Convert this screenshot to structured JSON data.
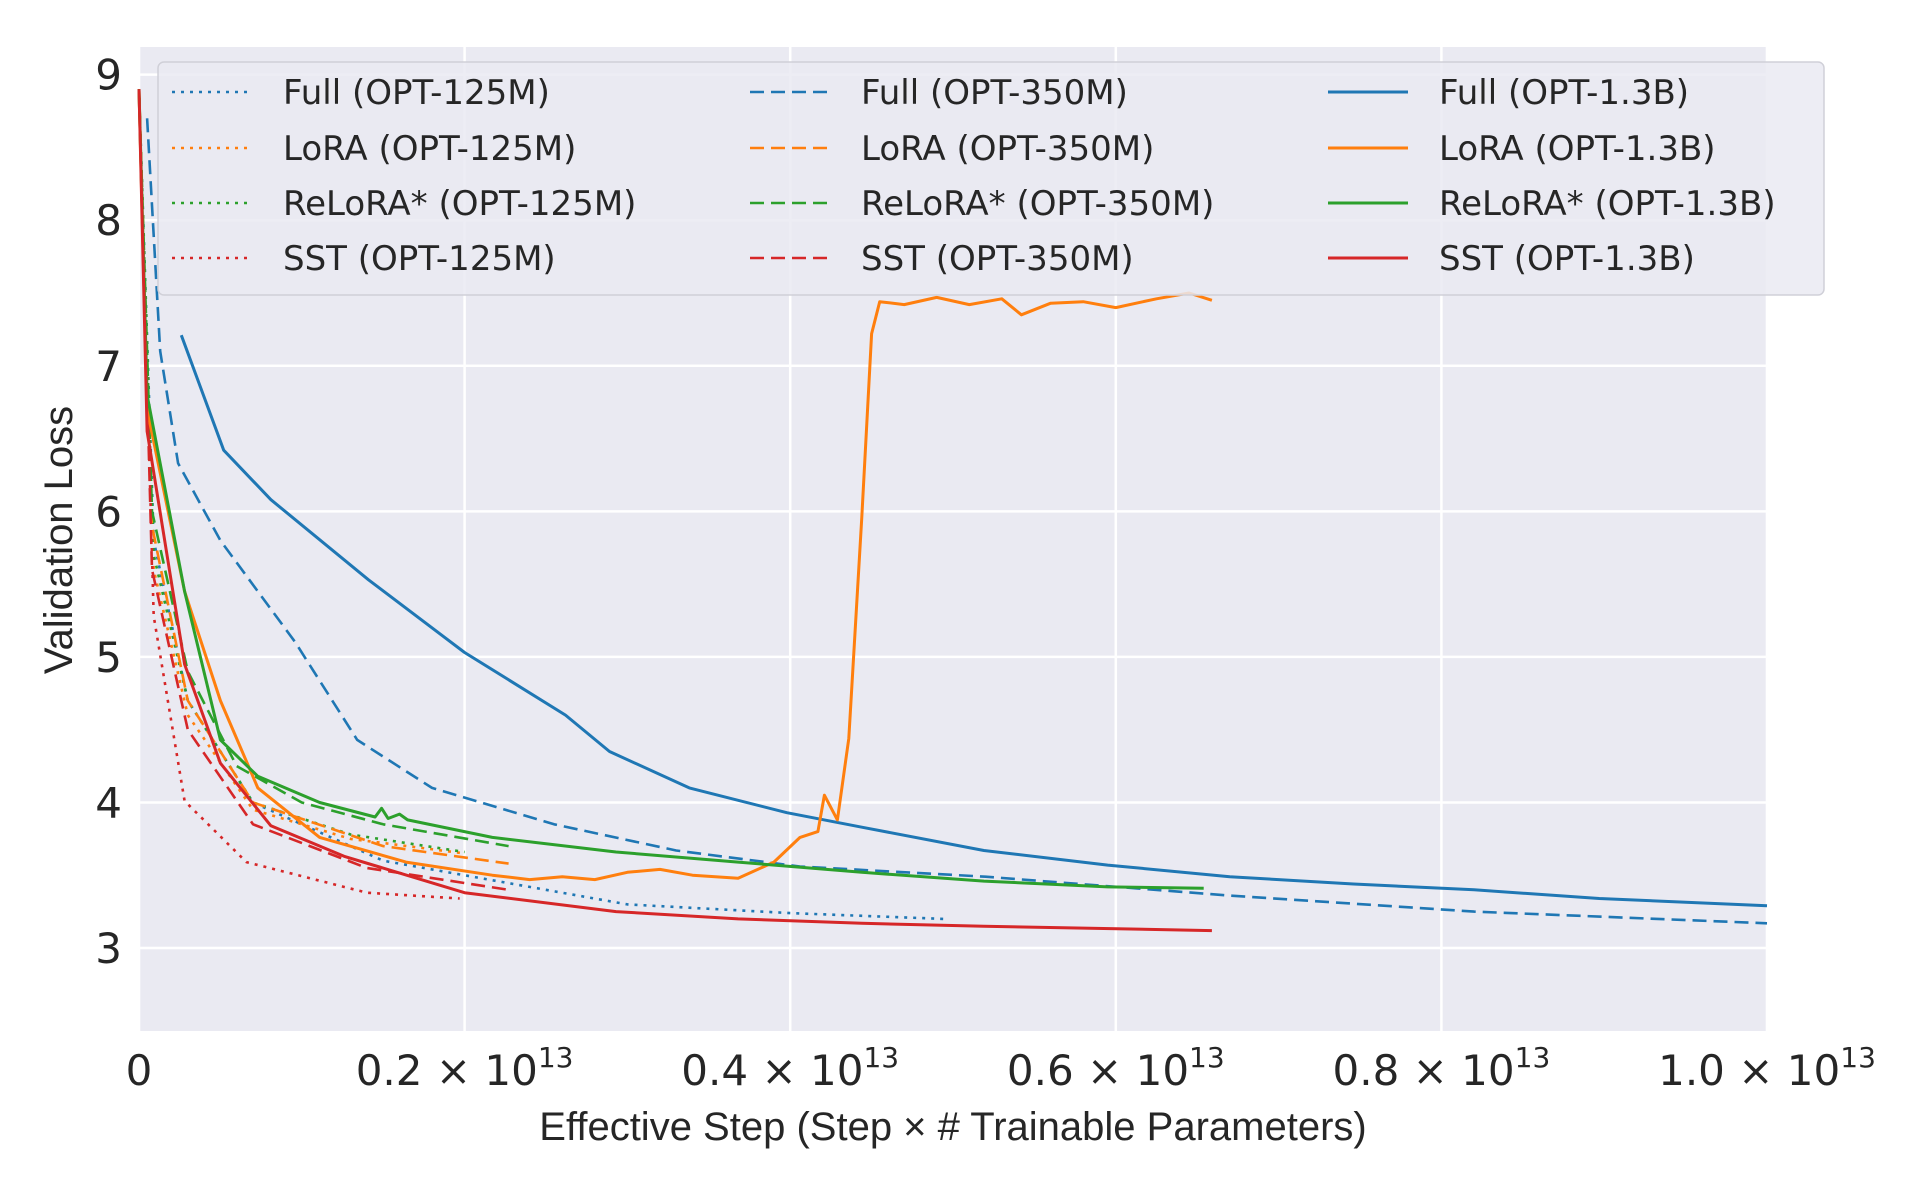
{
  "chart_data": {
    "type": "line",
    "title": "",
    "xlabel": "Effective Step (Step × # Trainable Parameters)",
    "ylabel": "Validation Loss",
    "x_unit_exponent": 13,
    "xlim": [
      0,
      1.0
    ],
    "ylim": [
      2.43,
      9.19
    ],
    "grid": true,
    "legend_placement": "top",
    "background": "#eaeaf2",
    "x_ticks": [
      {
        "value": 0,
        "label": "0",
        "exp": ""
      },
      {
        "value": 0.2,
        "label": "0.2 × 10",
        "exp": "13"
      },
      {
        "value": 0.4,
        "label": "0.4 × 10",
        "exp": "13"
      },
      {
        "value": 0.6,
        "label": "0.6 × 10",
        "exp": "13"
      },
      {
        "value": 0.8,
        "label": "0.8 × 10",
        "exp": "13"
      },
      {
        "value": 1.0,
        "label": "1.0 × 10",
        "exp": "13"
      }
    ],
    "y_ticks": [
      {
        "value": 3,
        "label": "3"
      },
      {
        "value": 4,
        "label": "4"
      },
      {
        "value": 5,
        "label": "5"
      },
      {
        "value": 6,
        "label": "6"
      },
      {
        "value": 7,
        "label": "7"
      },
      {
        "value": 8,
        "label": "8"
      },
      {
        "value": 9,
        "label": "9"
      }
    ],
    "series": [
      {
        "name": "Full (OPT-125M)",
        "color": "#1f77b4",
        "style": "dotted",
        "points": [
          [
            0,
            8.9
          ],
          [
            0.009,
            5.8
          ],
          [
            0.03,
            4.7
          ],
          [
            0.07,
            4.0
          ],
          [
            0.15,
            3.6
          ],
          [
            0.3,
            3.3
          ],
          [
            0.4,
            3.24
          ],
          [
            0.494,
            3.2
          ]
        ]
      },
      {
        "name": "LoRA (OPT-125M)",
        "color": "#ff7f0e",
        "style": "dotted",
        "points": [
          [
            0,
            8.9
          ],
          [
            0.009,
            5.6
          ],
          [
            0.03,
            4.6
          ],
          [
            0.07,
            3.95
          ],
          [
            0.13,
            3.75
          ],
          [
            0.2,
            3.65
          ]
        ]
      },
      {
        "name": "ReLoRA* (OPT-125M)",
        "color": "#2ca02c",
        "style": "dotted",
        "points": [
          [
            0,
            8.9
          ],
          [
            0.009,
            5.7
          ],
          [
            0.03,
            4.7
          ],
          [
            0.07,
            4.0
          ],
          [
            0.13,
            3.78
          ],
          [
            0.2,
            3.66
          ]
        ]
      },
      {
        "name": "SST (OPT-125M)",
        "color": "#d62728",
        "style": "dotted",
        "points": [
          [
            0,
            8.9
          ],
          [
            0.009,
            5.28
          ],
          [
            0.028,
            4.01
          ],
          [
            0.066,
            3.59
          ],
          [
            0.14,
            3.38
          ],
          [
            0.197,
            3.34
          ]
        ]
      },
      {
        "name": "Full (OPT-350M)",
        "color": "#1f77b4",
        "style": "dashed",
        "points": [
          [
            0.005,
            8.7
          ],
          [
            0.013,
            7.1
          ],
          [
            0.024,
            6.33
          ],
          [
            0.05,
            5.8
          ],
          [
            0.096,
            5.1
          ],
          [
            0.134,
            4.43
          ],
          [
            0.18,
            4.1
          ],
          [
            0.255,
            3.85
          ],
          [
            0.33,
            3.67
          ],
          [
            0.406,
            3.56
          ],
          [
            0.52,
            3.49
          ],
          [
            0.67,
            3.36
          ],
          [
            0.82,
            3.25
          ],
          [
            1.0,
            3.17
          ]
        ]
      },
      {
        "name": "LoRA (OPT-350M)",
        "color": "#ff7f0e",
        "style": "dashed",
        "points": [
          [
            0,
            8.9
          ],
          [
            0.008,
            5.9
          ],
          [
            0.03,
            4.7
          ],
          [
            0.07,
            4.0
          ],
          [
            0.15,
            3.7
          ],
          [
            0.227,
            3.58
          ]
        ]
      },
      {
        "name": "ReLoRA* (OPT-350M)",
        "color": "#2ca02c",
        "style": "dashed",
        "points": [
          [
            0,
            8.9
          ],
          [
            0.008,
            6.0
          ],
          [
            0.03,
            4.9
          ],
          [
            0.06,
            4.25
          ],
          [
            0.1,
            4.0
          ],
          [
            0.15,
            3.85
          ],
          [
            0.227,
            3.7
          ]
        ]
      },
      {
        "name": "SST (OPT-350M)",
        "color": "#d62728",
        "style": "dashed",
        "points": [
          [
            0,
            8.9
          ],
          [
            0.008,
            5.6
          ],
          [
            0.03,
            4.5
          ],
          [
            0.07,
            3.85
          ],
          [
            0.14,
            3.55
          ],
          [
            0.227,
            3.4
          ]
        ]
      },
      {
        "name": "Full (OPT-1.3B)",
        "color": "#1f77b4",
        "style": "solid",
        "points": [
          [
            0.026,
            7.21
          ],
          [
            0.052,
            6.42
          ],
          [
            0.081,
            6.08
          ],
          [
            0.141,
            5.53
          ],
          [
            0.2,
            5.03
          ],
          [
            0.262,
            4.6
          ],
          [
            0.289,
            4.35
          ],
          [
            0.338,
            4.1
          ],
          [
            0.398,
            3.93
          ],
          [
            0.444,
            3.83
          ],
          [
            0.519,
            3.67
          ],
          [
            0.595,
            3.57
          ],
          [
            0.67,
            3.49
          ],
          [
            0.746,
            3.44
          ],
          [
            0.82,
            3.4
          ],
          [
            0.897,
            3.34
          ],
          [
            1.0,
            3.29
          ]
        ]
      },
      {
        "name": "LoRA (OPT-1.3B)",
        "color": "#ff7f0e",
        "style": "solid",
        "points": [
          [
            0,
            8.9
          ],
          [
            0.005,
            6.7
          ],
          [
            0.028,
            5.45
          ],
          [
            0.05,
            4.7
          ],
          [
            0.073,
            4.1
          ],
          [
            0.111,
            3.76
          ],
          [
            0.164,
            3.59
          ],
          [
            0.217,
            3.5
          ],
          [
            0.24,
            3.47
          ],
          [
            0.26,
            3.49
          ],
          [
            0.28,
            3.47
          ],
          [
            0.3,
            3.52
          ],
          [
            0.32,
            3.54
          ],
          [
            0.34,
            3.5
          ],
          [
            0.368,
            3.48
          ],
          [
            0.39,
            3.59
          ],
          [
            0.406,
            3.76
          ],
          [
            0.417,
            3.8
          ],
          [
            0.421,
            4.05
          ],
          [
            0.429,
            3.88
          ],
          [
            0.436,
            4.44
          ],
          [
            0.444,
            5.96
          ],
          [
            0.45,
            7.22
          ],
          [
            0.455,
            7.44
          ],
          [
            0.47,
            7.42
          ],
          [
            0.49,
            7.47
          ],
          [
            0.51,
            7.42
          ],
          [
            0.53,
            7.46
          ],
          [
            0.542,
            7.35
          ],
          [
            0.56,
            7.43
          ],
          [
            0.58,
            7.44
          ],
          [
            0.6,
            7.4
          ],
          [
            0.625,
            7.46
          ],
          [
            0.645,
            7.5
          ],
          [
            0.659,
            7.45
          ]
        ]
      },
      {
        "name": "ReLoRA* (OPT-1.3B)",
        "color": "#2ca02c",
        "style": "solid",
        "points": [
          [
            0,
            8.9
          ],
          [
            0.005,
            6.8
          ],
          [
            0.028,
            5.45
          ],
          [
            0.05,
            4.43
          ],
          [
            0.073,
            4.18
          ],
          [
            0.111,
            4.0
          ],
          [
            0.145,
            3.9
          ],
          [
            0.149,
            3.96
          ],
          [
            0.153,
            3.89
          ],
          [
            0.16,
            3.92
          ],
          [
            0.165,
            3.88
          ],
          [
            0.217,
            3.76
          ],
          [
            0.293,
            3.66
          ],
          [
            0.368,
            3.59
          ],
          [
            0.444,
            3.52
          ],
          [
            0.519,
            3.46
          ],
          [
            0.595,
            3.42
          ],
          [
            0.654,
            3.41
          ]
        ]
      },
      {
        "name": "SST (OPT-1.3B)",
        "color": "#d62728",
        "style": "solid",
        "points": [
          [
            0,
            8.9
          ],
          [
            0.005,
            6.55
          ],
          [
            0.028,
            4.95
          ],
          [
            0.05,
            4.27
          ],
          [
            0.081,
            3.84
          ],
          [
            0.126,
            3.63
          ],
          [
            0.2,
            3.38
          ],
          [
            0.293,
            3.25
          ],
          [
            0.368,
            3.2
          ],
          [
            0.444,
            3.17
          ],
          [
            0.519,
            3.15
          ],
          [
            0.659,
            3.12
          ]
        ]
      }
    ]
  }
}
